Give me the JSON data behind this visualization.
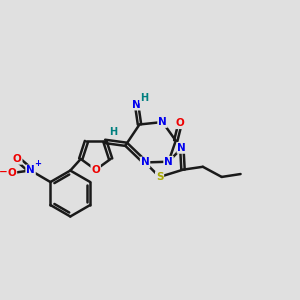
{
  "background_color": "#e0e0e0",
  "bond_color": "#1a1a1a",
  "bond_width": 1.8,
  "N_color": "#0000ee",
  "O_color": "#ee0000",
  "S_color": "#aaaa00",
  "H_color": "#008080",
  "font_size": 7.5,
  "xlim": [
    0,
    12
  ],
  "ylim": [
    0,
    10
  ]
}
